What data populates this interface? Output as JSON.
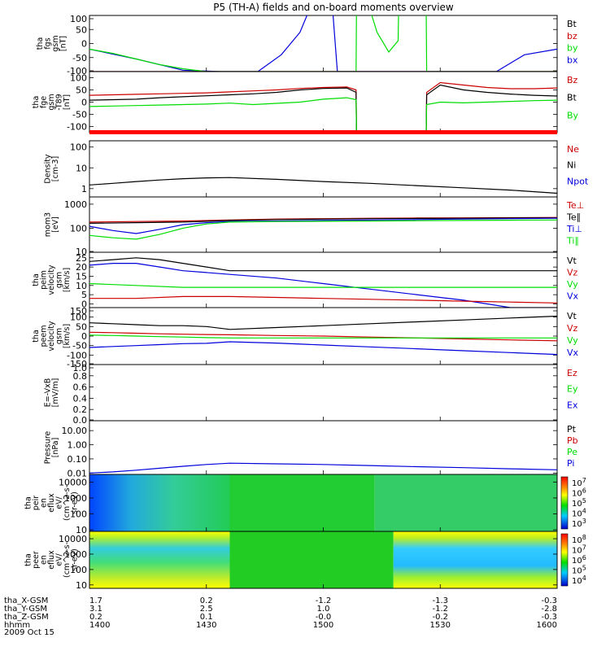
{
  "title": "P5 (TH-A) fields and on-board moments overview",
  "colors": {
    "black": "#000000",
    "red": "#cc0000",
    "green": "#00dd00",
    "blue": "#0000dd",
    "bright_red": "#ff0000"
  },
  "chart_data": [
    {
      "type": "line",
      "ylabel_lines": [
        "tha",
        "fgs",
        "gsm",
        "[nT]"
      ],
      "yticks": [
        "100",
        "50",
        "0",
        "-50",
        "-100"
      ],
      "ylim": [
        -100,
        100
      ],
      "legend": [
        {
          "name": "Bt",
          "color": "#000000"
        },
        {
          "name": "bz",
          "color": "#cc0000"
        },
        {
          "name": "by",
          "color": "#00dd00"
        },
        {
          "name": "bx",
          "color": "#0000dd"
        }
      ],
      "series": [
        {
          "name": "bx",
          "color": "#0000dd",
          "x": [
            0,
            10,
            20,
            28,
            36,
            41,
            45,
            47,
            49,
            52,
            53,
            57,
            59,
            60,
            65,
            68,
            72,
            73,
            80,
            87,
            93,
            100
          ],
          "y": [
            -20,
            -55,
            -95,
            -100,
            -100,
            -40,
            40,
            120,
            120,
            120,
            -100,
            -100,
            -100,
            -100,
            -100,
            -100,
            -100,
            -100,
            -100,
            -100,
            -40,
            -20
          ]
        },
        {
          "name": "by",
          "color": "#00dd00",
          "x": [
            0,
            5,
            10,
            15,
            20,
            25,
            28,
            30,
            40,
            50,
            57,
            57.1,
            60,
            61.5,
            64,
            66,
            66.1,
            70,
            72,
            72.1,
            80,
            90,
            100
          ],
          "y": [
            -20,
            -35,
            -55,
            -75,
            -90,
            -100,
            -100,
            -100,
            -100,
            -100,
            -100,
            120,
            120,
            40,
            -30,
            10,
            120,
            120,
            120,
            -100,
            -100,
            -100,
            -100
          ]
        },
        {
          "name": "bz",
          "color": "#cc0000",
          "x": [
            0,
            100
          ],
          "y": [
            -100,
            -100
          ]
        },
        {
          "name": "Bt",
          "color": "#000000",
          "x": [
            0,
            100
          ],
          "y": [
            -100,
            -100
          ]
        }
      ]
    },
    {
      "type": "line",
      "ylabel_lines": [
        "tha",
        "fge",
        "gsm",
        "-T89",
        "[nT]"
      ],
      "yticks": [
        "100",
        "50",
        "0",
        "-50",
        "-100"
      ],
      "ylim": [
        -125,
        125
      ],
      "legend": [
        {
          "name": "Bz",
          "color": "#cc0000"
        },
        {
          "name": "Bt",
          "color": "#000000"
        },
        {
          "name": "By",
          "color": "#00dd00"
        }
      ],
      "series": [
        {
          "name": "Bz",
          "color": "#cc0000",
          "x": [
            0,
            5,
            10,
            15,
            20,
            25,
            30,
            35,
            40,
            45,
            50,
            55,
            57,
            57.1,
            72,
            72.1,
            75,
            80,
            85,
            90,
            95,
            100
          ],
          "y": [
            28,
            30,
            32,
            34,
            36,
            38,
            42,
            46,
            50,
            56,
            60,
            62,
            50,
            -125,
            -125,
            40,
            80,
            70,
            60,
            55,
            55,
            58
          ]
        },
        {
          "name": "Bt",
          "color": "#000000",
          "x": [
            0,
            5,
            10,
            15,
            20,
            25,
            30,
            35,
            40,
            45,
            50,
            55,
            57,
            57.1,
            72,
            72.1,
            75,
            80,
            85,
            90,
            95,
            100
          ],
          "y": [
            8,
            10,
            12,
            18,
            22,
            26,
            30,
            34,
            40,
            50,
            56,
            58,
            40,
            -125,
            -125,
            30,
            70,
            50,
            40,
            33,
            28,
            25
          ]
        },
        {
          "name": "By",
          "color": "#00dd00",
          "x": [
            0,
            5,
            10,
            15,
            20,
            25,
            30,
            35,
            40,
            45,
            50,
            55,
            57,
            57.1,
            72,
            72.1,
            75,
            80,
            85,
            90,
            95,
            100
          ],
          "y": [
            -18,
            -16,
            -14,
            -12,
            -10,
            -8,
            -4,
            -10,
            -5,
            0,
            12,
            18,
            10,
            -125,
            -125,
            -10,
            0,
            -3,
            0,
            3,
            6,
            8
          ]
        }
      ]
    },
    {
      "type": "line",
      "ylabel_lines": [
        "Density",
        "[cm-3]"
      ],
      "yticks": [
        "100",
        "10",
        "1"
      ],
      "ylim_log": [
        0.4,
        200
      ],
      "legend": [
        {
          "name": "Ne",
          "color": "#cc0000"
        },
        {
          "name": "Ni",
          "color": "#000000"
        },
        {
          "name": "Npot",
          "color": "#0000dd"
        }
      ],
      "series": [
        {
          "name": "Ni",
          "color": "#000000",
          "x": [
            0,
            5,
            10,
            15,
            20,
            25,
            30,
            40,
            50,
            60,
            70,
            80,
            90,
            100
          ],
          "y": [
            1.5,
            1.8,
            2.2,
            2.6,
            3,
            3.3,
            3.4,
            2.8,
            2.2,
            1.8,
            1.4,
            1.1,
            0.85,
            0.6
          ]
        },
        {
          "name": "Ne",
          "color": "#cc0000",
          "x": [
            0,
            10,
            20,
            30,
            40,
            50,
            60,
            70,
            80,
            90,
            100
          ],
          "y": [
            0.38,
            0.38,
            0.38,
            0.38,
            0.38,
            0.38,
            0.38,
            0.38,
            0.38,
            0.38,
            0.38
          ]
        }
      ]
    },
    {
      "type": "line",
      "ylabel_lines": [
        "mom3",
        "[eV]"
      ],
      "yticks": [
        "1000",
        "100",
        "10"
      ],
      "ylim_log": [
        10,
        2000
      ],
      "legend": [
        {
          "name": "Te⊥",
          "color": "#cc0000"
        },
        {
          "name": "Te∥",
          "color": "#000000"
        },
        {
          "name": "Ti⊥",
          "color": "#0000dd"
        },
        {
          "name": "Ti∥",
          "color": "#00dd00"
        }
      ],
      "series": [
        {
          "name": "Te⊥",
          "color": "#cc0000",
          "x": [
            0,
            10,
            20,
            30,
            40,
            50,
            60,
            70,
            80,
            90,
            100
          ],
          "y": [
            180,
            190,
            200,
            220,
            240,
            250,
            260,
            265,
            270,
            275,
            280
          ]
        },
        {
          "name": "Te∥",
          "color": "#000000",
          "x": [
            0,
            10,
            20,
            30,
            40,
            50,
            60,
            70,
            80,
            90,
            100
          ],
          "y": [
            160,
            170,
            180,
            210,
            230,
            240,
            250,
            255,
            260,
            265,
            270
          ]
        },
        {
          "name": "Ti⊥",
          "color": "#0000dd",
          "x": [
            0,
            5,
            10,
            15,
            20,
            25,
            30,
            40,
            50,
            60,
            70,
            80,
            90,
            100
          ],
          "y": [
            120,
            80,
            60,
            90,
            140,
            170,
            190,
            200,
            210,
            220,
            230,
            240,
            250,
            260
          ]
        },
        {
          "name": "Ti∥",
          "color": "#00dd00",
          "x": [
            0,
            5,
            10,
            15,
            20,
            25,
            30,
            40,
            50,
            60,
            70,
            80,
            90,
            100
          ],
          "y": [
            50,
            40,
            35,
            55,
            100,
            150,
            180,
            190,
            195,
            200,
            205,
            210,
            215,
            220
          ]
        }
      ]
    },
    {
      "type": "line",
      "ylabel_lines": [
        "tha",
        "peim",
        "velocity",
        "gsm",
        "[km/s]"
      ],
      "yticks": [
        "25",
        "20",
        "15",
        "10",
        "5",
        "0"
      ],
      "ylim": [
        -2,
        28
      ],
      "legend": [
        {
          "name": "Vt",
          "color": "#000000"
        },
        {
          "name": "Vz",
          "color": "#cc0000"
        },
        {
          "name": "Vy",
          "color": "#00dd00"
        },
        {
          "name": "Vx",
          "color": "#0000dd"
        }
      ],
      "series": [
        {
          "name": "Vt",
          "color": "#000000",
          "x": [
            0,
            5,
            10,
            15,
            20,
            25,
            30,
            40,
            50,
            60,
            70,
            80,
            90,
            100
          ],
          "y": [
            23,
            24,
            25,
            24,
            22,
            20,
            18,
            18,
            18,
            18,
            18,
            18,
            18,
            18
          ]
        },
        {
          "name": "Vx",
          "color": "#0000dd",
          "x": [
            0,
            5,
            10,
            15,
            20,
            25,
            30,
            40,
            50,
            60,
            70,
            80,
            90,
            100
          ],
          "y": [
            21,
            22,
            22,
            20,
            18,
            17,
            16,
            14,
            11,
            8,
            5,
            2,
            -2,
            -2
          ]
        },
        {
          "name": "Vy",
          "color": "#00dd00",
          "x": [
            0,
            10,
            20,
            30,
            40,
            50,
            60,
            70,
            80,
            90,
            100
          ],
          "y": [
            11,
            10,
            9,
            9,
            9,
            9,
            9,
            9,
            9,
            9,
            9
          ]
        },
        {
          "name": "Vz",
          "color": "#cc0000",
          "x": [
            0,
            10,
            20,
            30,
            40,
            50,
            60,
            70,
            80,
            90,
            100
          ],
          "y": [
            3,
            3,
            4,
            4,
            3.5,
            3,
            2.5,
            2,
            1.5,
            1,
            0.5
          ]
        }
      ]
    },
    {
      "type": "line",
      "ylabel_lines": [
        "tha",
        "peem",
        "velocity",
        "gsm",
        "[km/s]"
      ],
      "yticks": [
        "150",
        "100",
        "50",
        "0",
        "-50",
        "-100",
        "-150"
      ],
      "ylim": [
        -150,
        150
      ],
      "legend": [
        {
          "name": "Vt",
          "color": "#000000"
        },
        {
          "name": "Vz",
          "color": "#cc0000"
        },
        {
          "name": "Vy",
          "color": "#00dd00"
        },
        {
          "name": "Vx",
          "color": "#0000dd"
        }
      ],
      "series": [
        {
          "name": "Vt",
          "color": "#000000",
          "x": [
            0,
            5,
            10,
            15,
            20,
            25,
            30,
            40,
            50,
            60,
            70,
            80,
            90,
            100
          ],
          "y": [
            70,
            65,
            60,
            55,
            55,
            50,
            35,
            45,
            55,
            65,
            75,
            85,
            95,
            105
          ]
        },
        {
          "name": "Vz",
          "color": "#cc0000",
          "x": [
            0,
            5,
            10,
            15,
            20,
            25,
            30,
            40,
            50,
            60,
            70,
            80,
            90,
            100
          ],
          "y": [
            20,
            18,
            15,
            12,
            10,
            8,
            7,
            3,
            0,
            -5,
            -10,
            -15,
            -20,
            -25
          ]
        },
        {
          "name": "Vy",
          "color": "#00dd00",
          "x": [
            0,
            5,
            10,
            15,
            20,
            25,
            30,
            40,
            50,
            60,
            70,
            80,
            90,
            100
          ],
          "y": [
            5,
            3,
            0,
            -3,
            -5,
            -8,
            -10,
            -10,
            -10,
            -10,
            -10,
            -10,
            -10,
            -10
          ]
        },
        {
          "name": "Vx",
          "color": "#0000dd",
          "x": [
            0,
            5,
            10,
            15,
            20,
            25,
            30,
            40,
            50,
            60,
            70,
            80,
            90,
            100
          ],
          "y": [
            -60,
            -55,
            -50,
            -45,
            -40,
            -38,
            -30,
            -37,
            -47,
            -57,
            -67,
            -77,
            -87,
            -97
          ]
        }
      ]
    },
    {
      "type": "line",
      "ylabel_lines": [
        "E=-VxB",
        "[mV/m]"
      ],
      "yticks": [
        "1.0",
        "0.8",
        "0.6",
        "0.4",
        "0.2",
        "0.0"
      ],
      "ylim": [
        0,
        1
      ],
      "legend": [
        {
          "name": "Ez",
          "color": "#cc0000"
        },
        {
          "name": "Ey",
          "color": "#00dd00"
        },
        {
          "name": "Ex",
          "color": "#0000dd"
        }
      ],
      "series": []
    },
    {
      "type": "line",
      "ylabel_lines": [
        "Pressure",
        "[nPa]"
      ],
      "yticks": [
        "10.00",
        "1.00",
        "0.10",
        "0.01"
      ],
      "ylim_log": [
        0.008,
        50
      ],
      "legend": [
        {
          "name": "Pt",
          "color": "#000000"
        },
        {
          "name": "Pb",
          "color": "#cc0000"
        },
        {
          "name": "Pe",
          "color": "#00dd00"
        },
        {
          "name": "Pi",
          "color": "#0000dd"
        }
      ],
      "series": [
        {
          "name": "Pi",
          "color": "#0000dd",
          "x": [
            0,
            5,
            10,
            15,
            20,
            25,
            30,
            40,
            50,
            60,
            70,
            80,
            90,
            100
          ],
          "y": [
            0.01,
            0.012,
            0.016,
            0.022,
            0.03,
            0.04,
            0.05,
            0.045,
            0.04,
            0.034,
            0.028,
            0.024,
            0.02,
            0.017
          ]
        }
      ]
    },
    {
      "type": "heatmap",
      "ylabel_lines": [
        "tha",
        "peir",
        "en",
        "eflux",
        "eV/",
        "(cm^2-s-",
        "sr-eV)"
      ],
      "yticks": [
        "10000",
        "1000",
        "100",
        "10"
      ],
      "ylim_log": [
        8,
        30000
      ],
      "colorbar_ticks": [
        "10^7",
        "10^6",
        "10^5",
        "10^4",
        "10^3"
      ],
      "colorbar_ticks_text": [
        "10",
        "10",
        "10",
        "10",
        "10"
      ],
      "colorbar_exponents": [
        "7",
        "6",
        "5",
        "4",
        "3"
      ]
    },
    {
      "type": "heatmap",
      "ylabel_lines": [
        "tha",
        "peer",
        "en",
        "eflux",
        "eV/",
        "(cm^2-s-",
        "sr-eV)"
      ],
      "yticks": [
        "10000",
        "1000",
        "100",
        "10"
      ],
      "ylim_log": [
        6,
        30000
      ],
      "colorbar_ticks_text": [
        "10",
        "10",
        "10",
        "10",
        "10"
      ],
      "colorbar_exponents": [
        "8",
        "7",
        "6",
        "5",
        "4"
      ]
    }
  ],
  "xaxis": {
    "rows": [
      {
        "label": "tha_X-GSM",
        "values": [
          "1.7",
          "0.2",
          "-1.2",
          "-1.3",
          "-0.3"
        ]
      },
      {
        "label": "tha_Y-GSM",
        "values": [
          "3.1",
          "2.5",
          "1.0",
          "-1.2",
          "-2.8"
        ]
      },
      {
        "label": "tha_Z-GSM",
        "values": [
          "0.2",
          "0.1",
          "-0.0",
          "-0.2",
          "-0.3"
        ]
      },
      {
        "label": "hhmm",
        "values": [
          "1400",
          "1430",
          "1500",
          "1530",
          "1600"
        ]
      }
    ],
    "date": "2009 Oct 15"
  }
}
